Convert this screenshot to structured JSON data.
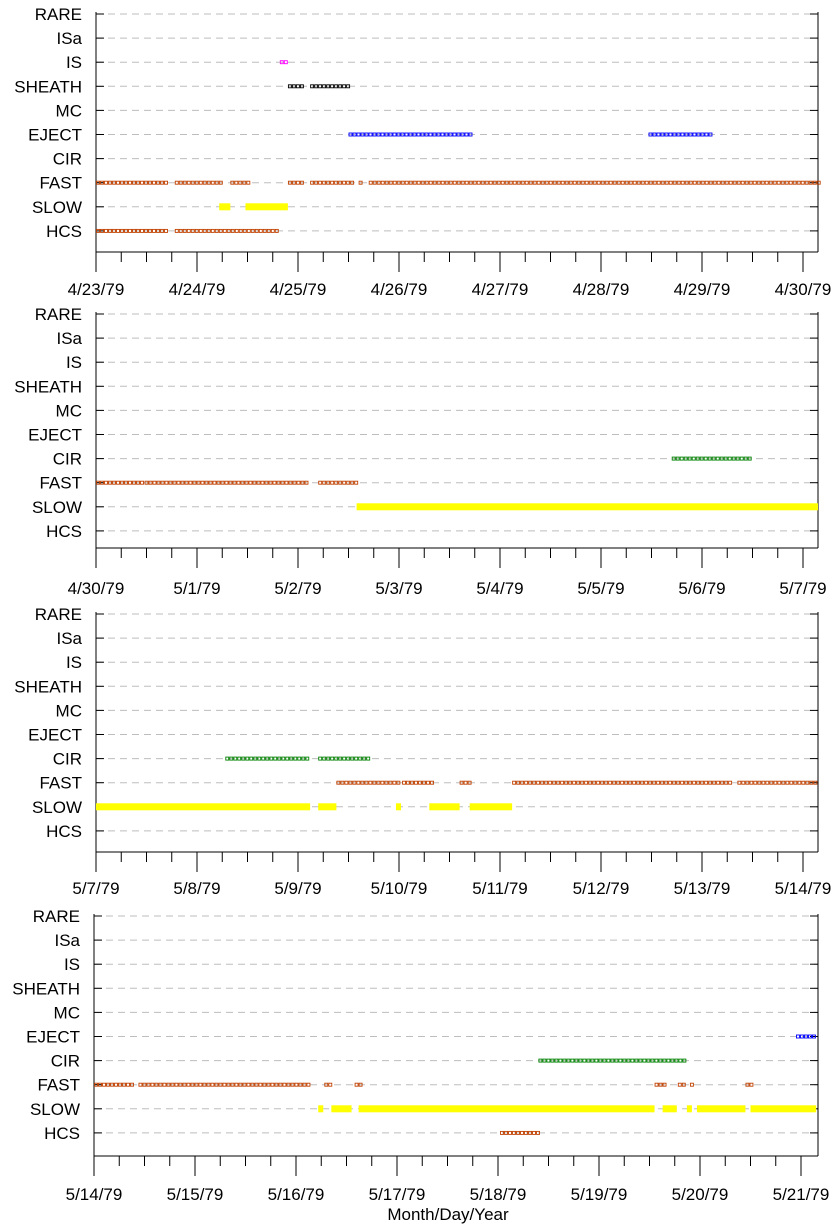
{
  "chart_data": [
    {
      "type": "timeline",
      "categories": [
        "RARE",
        "ISa",
        "IS",
        "SHEATH",
        "MC",
        "EJECT",
        "CIR",
        "FAST",
        "SLOW",
        "HCS"
      ],
      "x_tick_labels": [
        "4/23/79",
        "4/24/79",
        "4/25/79",
        "4/26/79",
        "4/27/79",
        "4/28/79",
        "4/29/79",
        "4/30/79"
      ],
      "xlim_days": [
        0,
        7.15
      ],
      "series": [
        {
          "category": "IS",
          "color": "#ff00ff",
          "style": "hollow",
          "intervals": [
            [
              1.82,
              1.9
            ]
          ]
        },
        {
          "category": "SHEATH",
          "color": "#000000",
          "style": "hollow",
          "intervals": [
            [
              1.9,
              2.04
            ],
            [
              2.12,
              2.5
            ]
          ]
        },
        {
          "category": "EJECT",
          "color": "#0000ff",
          "style": "hollow",
          "intervals": [
            [
              2.5,
              3.72
            ],
            [
              5.47,
              6.1
            ]
          ]
        },
        {
          "category": "FAST",
          "color": "#c04000",
          "style": "hollow",
          "intervals": [
            [
              0.0,
              0.7
            ],
            [
              0.78,
              1.25
            ],
            [
              1.33,
              1.5
            ],
            [
              1.9,
              2.04
            ],
            [
              2.12,
              2.55
            ],
            [
              2.6,
              2.64
            ],
            [
              2.7,
              7.15
            ]
          ]
        },
        {
          "category": "SLOW",
          "color": "#ffff00",
          "style": "solid",
          "intervals": [
            [
              1.22,
              1.33
            ],
            [
              1.48,
              1.9
            ]
          ]
        },
        {
          "category": "HCS",
          "color": "#c04000",
          "style": "hollow",
          "intervals": [
            [
              0.0,
              0.7
            ],
            [
              0.78,
              1.8
            ]
          ]
        }
      ]
    },
    {
      "type": "timeline",
      "categories": [
        "RARE",
        "ISa",
        "IS",
        "SHEATH",
        "MC",
        "EJECT",
        "CIR",
        "FAST",
        "SLOW",
        "HCS"
      ],
      "x_tick_labels": [
        "4/30/79",
        "5/1/79",
        "5/2/79",
        "5/3/79",
        "5/4/79",
        "5/5/79",
        "5/6/79",
        "5/7/79"
      ],
      "xlim_days": [
        0,
        7.15
      ],
      "series": [
        {
          "category": "CIR",
          "color": "#008000",
          "style": "hollow",
          "intervals": [
            [
              5.7,
              6.5
            ]
          ]
        },
        {
          "category": "FAST",
          "color": "#c04000",
          "style": "hollow",
          "intervals": [
            [
              0.0,
              0.45
            ],
            [
              0.48,
              2.08
            ],
            [
              2.2,
              2.58
            ]
          ]
        },
        {
          "category": "SLOW",
          "color": "#ffff00",
          "style": "solid",
          "intervals": [
            [
              2.58,
              7.15
            ]
          ]
        }
      ]
    },
    {
      "type": "timeline",
      "categories": [
        "RARE",
        "ISa",
        "IS",
        "SHEATH",
        "MC",
        "EJECT",
        "CIR",
        "FAST",
        "SLOW",
        "HCS"
      ],
      "x_tick_labels": [
        "5/7/79",
        "5/8/79",
        "5/9/79",
        "5/10/79",
        "5/11/79",
        "5/12/79",
        "5/13/79",
        "5/14/79"
      ],
      "xlim_days": [
        0,
        7.15
      ],
      "series": [
        {
          "category": "CIR",
          "color": "#008000",
          "style": "hollow",
          "intervals": [
            [
              1.28,
              2.1
            ],
            [
              2.2,
              2.7
            ]
          ]
        },
        {
          "category": "FAST",
          "color": "#c04000",
          "style": "hollow",
          "intervals": [
            [
              2.38,
              3.0
            ],
            [
              3.03,
              3.32
            ],
            [
              3.6,
              3.7
            ],
            [
              4.12,
              6.3
            ],
            [
              6.35,
              7.15
            ]
          ]
        },
        {
          "category": "SLOW",
          "color": "#ffff00",
          "style": "solid",
          "intervals": [
            [
              0.0,
              2.12
            ],
            [
              2.2,
              2.38
            ],
            [
              2.97,
              3.02
            ],
            [
              3.3,
              3.6
            ],
            [
              3.7,
              4.12
            ]
          ]
        }
      ]
    },
    {
      "type": "timeline",
      "categories": [
        "RARE",
        "ISa",
        "IS",
        "SHEATH",
        "MC",
        "EJECT",
        "CIR",
        "FAST",
        "SLOW",
        "HCS"
      ],
      "x_tick_labels": [
        "5/14/79",
        "5/15/79",
        "5/16/79",
        "5/17/79",
        "5/18/79",
        "5/19/79",
        "5/20/79",
        "5/21/79"
      ],
      "xlim_days": [
        0,
        7.15
      ],
      "series": [
        {
          "category": "EJECT",
          "color": "#0000ff",
          "style": "hollow",
          "intervals": [
            [
              6.95,
              7.15
            ]
          ]
        },
        {
          "category": "CIR",
          "color": "#008000",
          "style": "hollow",
          "intervals": [
            [
              4.4,
              5.85
            ]
          ]
        },
        {
          "category": "FAST",
          "color": "#c04000",
          "style": "hollow",
          "intervals": [
            [
              0.0,
              0.4
            ],
            [
              0.44,
              2.15
            ],
            [
              2.28,
              2.36
            ],
            [
              2.58,
              2.65
            ],
            [
              5.55,
              5.64
            ],
            [
              5.78,
              5.86
            ],
            [
              5.9,
              5.94
            ],
            [
              6.45,
              6.5
            ]
          ]
        },
        {
          "category": "SLOW",
          "color": "#ffff00",
          "style": "solid",
          "intervals": [
            [
              2.22,
              2.27
            ],
            [
              2.35,
              2.55
            ],
            [
              2.62,
              5.55
            ],
            [
              5.63,
              5.77
            ],
            [
              5.87,
              5.92
            ],
            [
              5.97,
              6.45
            ],
            [
              6.5,
              7.15
            ]
          ]
        },
        {
          "category": "HCS",
          "color": "#c04000",
          "style": "hollow",
          "intervals": [
            [
              4.02,
              4.4
            ]
          ]
        }
      ],
      "xlabel": "Month/Day/Year"
    }
  ]
}
